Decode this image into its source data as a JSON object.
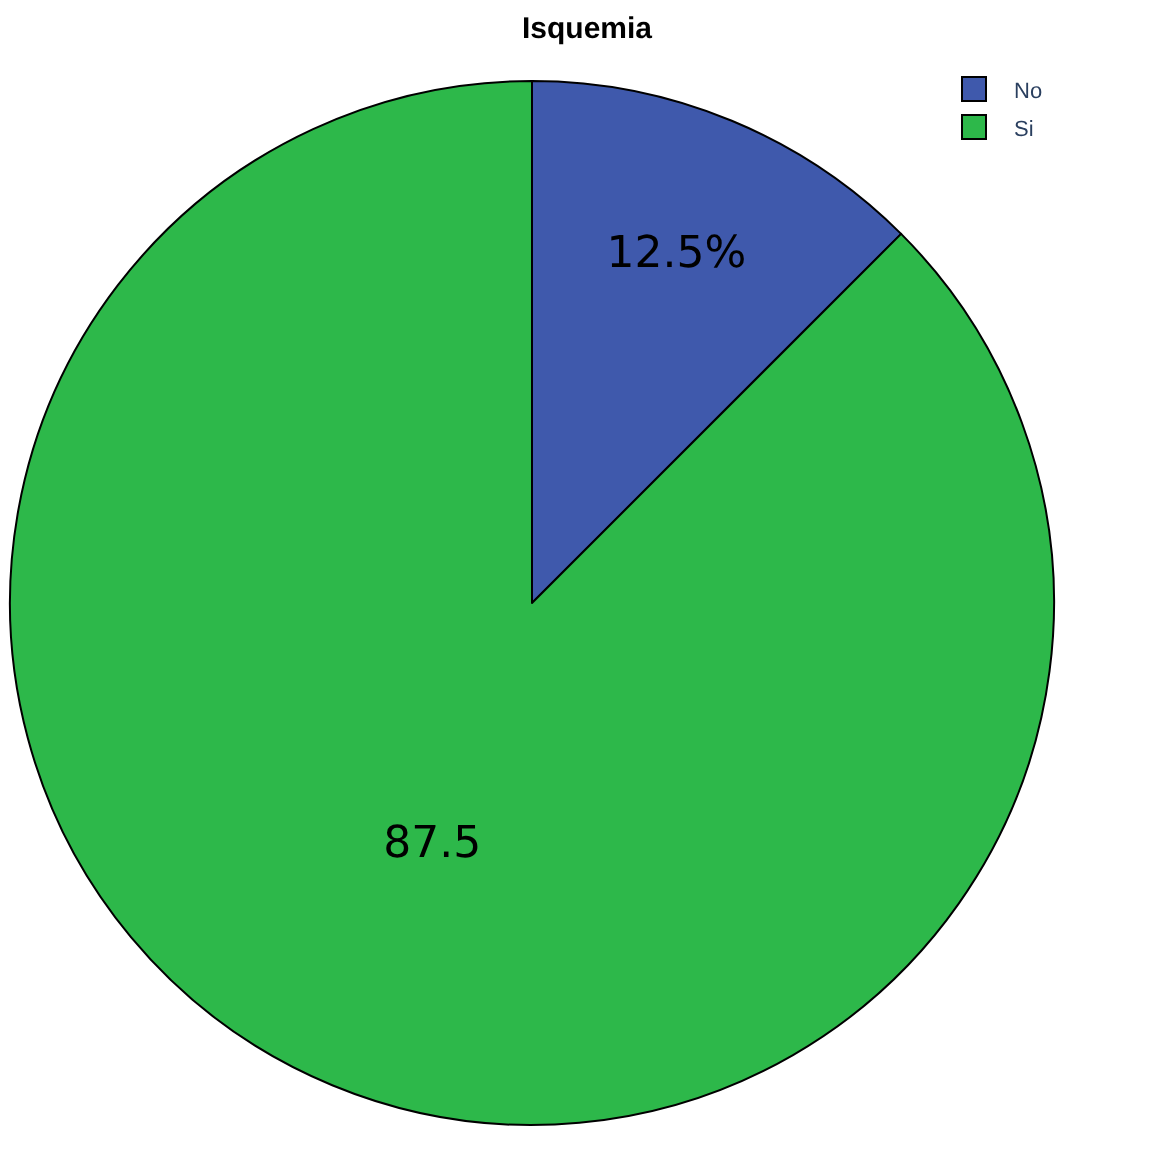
{
  "chart_data": {
    "type": "pie",
    "title": "Isquemia",
    "categories": [
      "No",
      "Si"
    ],
    "values": [
      12.5,
      87.5
    ],
    "colors": [
      "#3f59ac",
      "#2db84a"
    ],
    "value_labels": [
      "12.5%",
      "87.5"
    ],
    "legend": "top right"
  }
}
